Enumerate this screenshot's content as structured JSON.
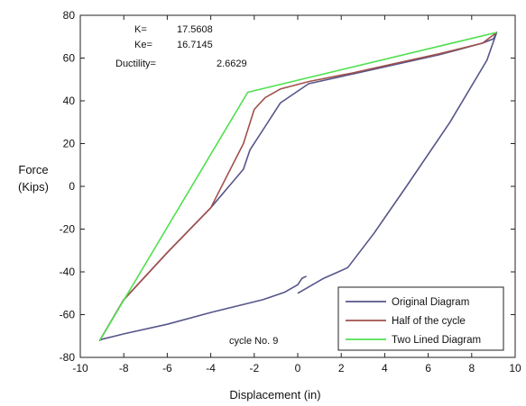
{
  "chart_data": {
    "type": "line",
    "xlabel": "Displacement (in)",
    "ylabel": [
      "Force",
      "(Kips)"
    ],
    "xlim": [
      -10,
      10
    ],
    "ylim": [
      -80,
      80
    ],
    "xticks": [
      -10,
      -8,
      -6,
      -4,
      -2,
      0,
      2,
      4,
      6,
      8,
      10
    ],
    "yticks": [
      -80,
      -60,
      -40,
      -20,
      0,
      20,
      40,
      60,
      80
    ],
    "grid": false,
    "legend_position": "bottom-right",
    "annotations": {
      "k_label": "K=",
      "k_value": "17.5608",
      "ke_label": "Ke=",
      "ke_value": "16.7145",
      "ductility_label": "Ductility=",
      "ductility_value": "2.6629",
      "cycle": "cycle No. 9"
    },
    "series": [
      {
        "name": "Original Diagram",
        "color": "#55558a",
        "x": [
          0.4,
          0.2,
          0.0,
          -0.6,
          -1.6,
          -2.4,
          -4.0,
          -6.0,
          -8.0,
          -9.0,
          -9.1,
          -8.0,
          -6.0,
          -4.0,
          -2.5,
          -2.2,
          -1.5,
          -0.8,
          0.5,
          2.5,
          4.5,
          6.5,
          8.5,
          9.0,
          9.15,
          8.7,
          7.0,
          5.0,
          3.5,
          2.3,
          1.2,
          0.0
        ],
        "y": [
          -42,
          -43,
          -46,
          -49.5,
          -53,
          -55,
          -59,
          -64.5,
          -69,
          -71.5,
          -72,
          -53,
          -31,
          -10,
          8,
          17,
          28,
          39,
          48,
          52.5,
          57,
          61.5,
          67,
          69,
          72,
          59,
          30,
          0,
          -22,
          -38,
          -43,
          -50
        ]
      },
      {
        "name": "Half of the cycle",
        "color": "#a0504a",
        "x": [
          -9.1,
          -8.0,
          -6.0,
          -4.0,
          -2.5,
          -2.0,
          -1.5,
          -0.8,
          0.5,
          2.5,
          4.5,
          6.5,
          8.5,
          9.15
        ],
        "y": [
          -72,
          -53,
          -31,
          -10,
          20,
          36,
          41.5,
          45.5,
          49,
          53,
          57.5,
          62,
          67,
          72
        ]
      },
      {
        "name": "Two Lined Diagram",
        "color": "#50e050",
        "x": [
          -9.1,
          -2.3,
          9.15
        ],
        "y": [
          -72,
          44,
          72
        ]
      }
    ]
  }
}
